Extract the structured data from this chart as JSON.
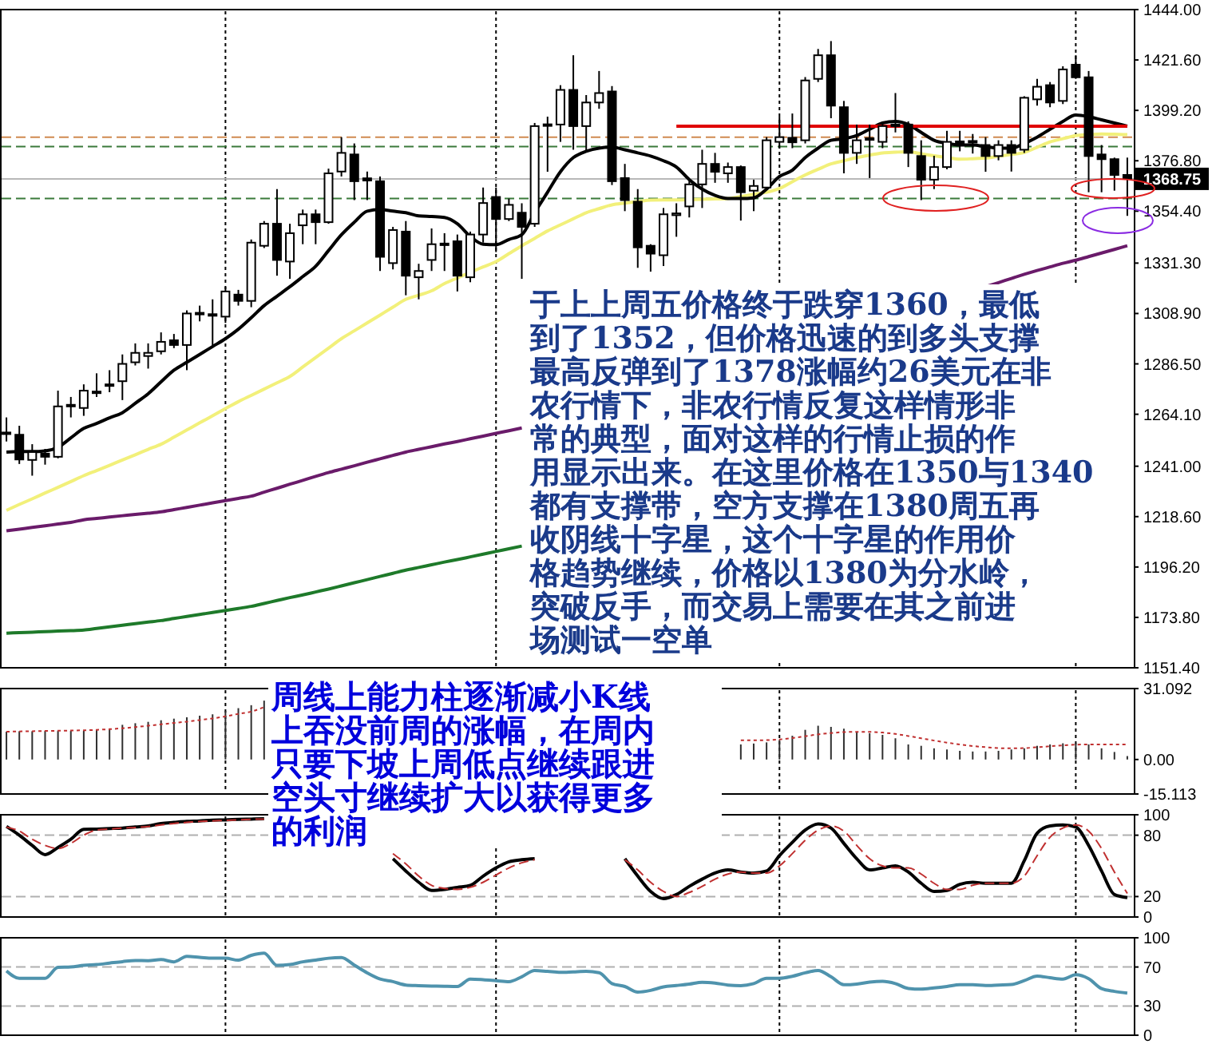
{
  "chart_data": [
    {
      "type": "candlestick",
      "categories": [
        null,
        null,
        null,
        null,
        null,
        null,
        null,
        null,
        null,
        null,
        null,
        null,
        null,
        null,
        null,
        null,
        null,
        null,
        null,
        null,
        null,
        null,
        null,
        null,
        null,
        null,
        null,
        null,
        null,
        null,
        null,
        null,
        null,
        null,
        null,
        null,
        null,
        null,
        null,
        null,
        null,
        null,
        null,
        null,
        null,
        null,
        null,
        null,
        null,
        null,
        null,
        null,
        null,
        null,
        null,
        null,
        null,
        null,
        null,
        null,
        null,
        null,
        null,
        null,
        null,
        null,
        null,
        null,
        null,
        null,
        null,
        null,
        null,
        null,
        null,
        null,
        null,
        null,
        null,
        null,
        null,
        null,
        null,
        null,
        null,
        null,
        null,
        null
      ],
      "ohlc": [
        [
          1255.7,
          1262.7,
          1252,
          1256
        ],
        [
          1255,
          1259,
          1242,
          1244
        ],
        [
          1243.8,
          1250.8,
          1236.8,
          1247.3
        ],
        [
          1246.6,
          1248.7,
          1241.7,
          1245.2
        ],
        [
          1245.2,
          1274.6,
          1244.5,
          1267.6
        ],
        [
          1268,
          1271.8,
          1262.7,
          1268.3
        ],
        [
          1266.9,
          1277.4,
          1263.4,
          1274.6
        ],
        [
          1273.8,
          1282.3,
          1271.8,
          1274.2
        ],
        [
          1276.8,
          1283.7,
          1273.9,
          1277.4
        ],
        [
          1278.8,
          1290.7,
          1270.4,
          1286.5
        ],
        [
          1287.2,
          1295.6,
          1285.8,
          1291.4
        ],
        [
          1290,
          1295.6,
          1284.4,
          1291.4
        ],
        [
          1292.1,
          1300.5,
          1290.7,
          1296.3
        ],
        [
          1297,
          1299.8,
          1293.5,
          1294.9
        ],
        [
          1294.9,
          1310.3,
          1283.7,
          1308.9
        ],
        [
          1308.6,
          1312.4,
          1305.4,
          1309.2
        ],
        [
          1308.2,
          1315.2,
          1294.2,
          1308.6
        ],
        [
          1307.5,
          1320.8,
          1304.7,
          1318.7
        ],
        [
          1317.3,
          1319.4,
          1312.4,
          1314.5
        ],
        [
          1314.5,
          1341.8,
          1311.7,
          1340.4
        ],
        [
          1339,
          1350,
          1338,
          1348.8
        ],
        [
          1348.8,
          1364.2,
          1325.7,
          1332.7
        ],
        [
          1332,
          1348.8,
          1324.3,
          1344.6
        ],
        [
          1348.1,
          1355.1,
          1339.7,
          1353
        ],
        [
          1353,
          1355.1,
          1339.7,
          1349.5
        ],
        [
          1349.5,
          1373.3,
          1348.8,
          1371.2
        ],
        [
          1372,
          1387.3,
          1369.8,
          1380.3
        ],
        [
          1379.6,
          1384.5,
          1359.3,
          1367.7
        ],
        [
          1369,
          1372,
          1359.3,
          1368
        ],
        [
          1367.7,
          1369.8,
          1327.8,
          1334.1
        ],
        [
          1331.3,
          1347.4,
          1328.5,
          1346
        ],
        [
          1345.3,
          1350,
          1317,
          1325.7
        ],
        [
          1325,
          1331,
          1315.2,
          1327.8
        ],
        [
          1332.7,
          1346.7,
          1327.8,
          1339.7
        ],
        [
          1339.7,
          1344.6,
          1327.8,
          1340
        ],
        [
          1341,
          1344,
          1318.7,
          1325.7
        ],
        [
          1325,
          1345.3,
          1322.8,
          1344
        ],
        [
          1344,
          1364.9,
          1340.4,
          1358
        ],
        [
          1360.7,
          1364.9,
          1336.2,
          1350.9
        ],
        [
          1350.9,
          1360,
          1350,
          1357.2
        ],
        [
          1353.7,
          1357.9,
          1324.3,
          1347.4
        ],
        [
          1348.8,
          1393.6,
          1347.4,
          1392.2
        ],
        [
          1392.5,
          1396.4,
          1371.9,
          1393
        ],
        [
          1392.9,
          1410.4,
          1385.2,
          1408.3
        ],
        [
          1408.3,
          1423.7,
          1381.7,
          1392.2
        ],
        [
          1392.2,
          1406,
          1381,
          1402.7
        ],
        [
          1402.7,
          1416.7,
          1399.9,
          1406.9
        ],
        [
          1407.6,
          1410,
          1366,
          1367.7
        ],
        [
          1369.1,
          1375.4,
          1354.4,
          1359.3
        ],
        [
          1358.6,
          1364.2,
          1329.2,
          1338.3
        ],
        [
          1339,
          1339.7,
          1327.5,
          1335.5
        ],
        [
          1334.8,
          1355.8,
          1330,
          1353
        ],
        [
          1352.6,
          1357.9,
          1343,
          1353.4
        ],
        [
          1356.5,
          1367.7,
          1351.6,
          1366.3
        ],
        [
          1366.3,
          1381.7,
          1355.8,
          1375.4
        ],
        [
          1375.4,
          1380.3,
          1367,
          1371.9
        ],
        [
          1371.2,
          1376,
          1367,
          1374
        ],
        [
          1374,
          1374.7,
          1350.2,
          1362.8
        ],
        [
          1363.5,
          1368.4,
          1354.4,
          1365.6
        ],
        [
          1364.9,
          1387.3,
          1364.2,
          1385.9
        ],
        [
          1385.2,
          1396.4,
          1382.4,
          1387.3
        ],
        [
          1387,
          1397.8,
          1382.4,
          1385
        ],
        [
          1385.9,
          1414,
          1384.5,
          1412.5
        ],
        [
          1413.2,
          1426.5,
          1411.8,
          1423.7
        ],
        [
          1423.7,
          1430,
          1395.7,
          1401.3
        ],
        [
          1400.6,
          1403.4,
          1371.2,
          1380.3
        ],
        [
          1380.3,
          1392.9,
          1375.4,
          1385.9
        ],
        [
          1386.4,
          1392.9,
          1369.1,
          1386.8
        ],
        [
          1385.2,
          1393.6,
          1382.4,
          1392.2
        ],
        [
          1392.5,
          1406.9,
          1389.4,
          1392.9
        ],
        [
          1392.9,
          1394.3,
          1374,
          1380.3
        ],
        [
          1378.9,
          1385.9,
          1359.3,
          1368.4
        ],
        [
          1368.4,
          1379,
          1364.2,
          1374
        ],
        [
          1374,
          1390.1,
          1373,
          1385.2
        ],
        [
          1385,
          1390.1,
          1381,
          1385.4
        ],
        [
          1385.2,
          1388.7,
          1380,
          1385.6
        ],
        [
          1383.8,
          1387.3,
          1371.9,
          1378.9
        ],
        [
          1378.9,
          1385.9,
          1377,
          1383.8
        ],
        [
          1383.8,
          1385.9,
          1372,
          1380.3
        ],
        [
          1381.7,
          1405.5,
          1380.3,
          1404.8
        ],
        [
          1404.1,
          1413.2,
          1401.3,
          1409.7
        ],
        [
          1410.4,
          1411.8,
          1400.6,
          1402.7
        ],
        [
          1403.4,
          1418.8,
          1402,
          1417.4
        ],
        [
          1419.5,
          1423.7,
          1413.2,
          1413.9
        ],
        [
          1413.9,
          1416.7,
          1362.8,
          1378.9
        ],
        [
          1379.6,
          1383.8,
          1362.8,
          1377.5
        ],
        [
          1377.5,
          1378.2,
          1363.5,
          1370.5
        ],
        [
          1370.5,
          1378.2,
          1352.3,
          1368.75
        ]
      ],
      "series": [
        {
          "type": "line",
          "color": "#1e7a2a",
          "values": [
            1166.8,
            1167,
            1167.2,
            1167.5,
            1167.7,
            1167.9,
            1168.2,
            1168.9,
            1169.6,
            1170.3,
            1171,
            1171.7,
            1172.4,
            1173.3,
            1174.2,
            1175.1,
            1176,
            1176.9,
            1177.8,
            1178.7,
            1180,
            1181.3,
            1182.6,
            1183.8,
            1185.1,
            1186.4,
            1187.8,
            1189.2,
            1190.6,
            1192,
            1193.4,
            1194.8,
            1196,
            1197.2,
            1198.4,
            1199.5,
            1200.7,
            1201.9,
            1203.1,
            1204.3,
            1205.5,
            null,
            null,
            null,
            null,
            null,
            null,
            null,
            null,
            null,
            null,
            null,
            null,
            null,
            null,
            null,
            null,
            null,
            null,
            null,
            null,
            null,
            null,
            null,
            null,
            null,
            null,
            null,
            null,
            null,
            null,
            null,
            null,
            null,
            null,
            null,
            null,
            null,
            null,
            null,
            null,
            null,
            null,
            null,
            null,
            null,
            null,
            null
          ]
        },
        {
          "type": "line",
          "color": "#6a1b6a",
          "values": [
            1212.3,
            1213,
            1213.8,
            1214.5,
            1215.3,
            1216,
            1217.2,
            1217.8,
            1218.4,
            1219,
            1219.6,
            1220.1,
            1220.7,
            1221.7,
            1222.7,
            1223.7,
            1224.7,
            1225.7,
            1226.7,
            1227.7,
            1229.5,
            1231.2,
            1233,
            1234.7,
            1236.5,
            1238.2,
            1239.7,
            1241.2,
            1242.8,
            1244.3,
            1245.8,
            1247.3,
            1248.5,
            1249.7,
            1250.9,
            1252,
            1253.2,
            1254.4,
            1255.6,
            1256.8,
            1258,
            null,
            null,
            null,
            null,
            null,
            null,
            null,
            null,
            null,
            null,
            null,
            null,
            null,
            null,
            null,
            null,
            null,
            null,
            null,
            null,
            null,
            null,
            null,
            null,
            null,
            null,
            null,
            null,
            null,
            null,
            null,
            null,
            null,
            null,
            null,
            1320.8,
            1322.6,
            1324.5,
            1326.3,
            1328,
            1329.6,
            1331.2,
            1332.6,
            1334.2,
            1335.8,
            1337.4,
            1339
          ]
        },
        {
          "type": "line",
          "color": "#f2f07a",
          "values": [
            1221.4,
            1224,
            1226.5,
            1229.1,
            1231.6,
            1234.2,
            1236.8,
            1239.1,
            1241.4,
            1243.8,
            1246.1,
            1248.5,
            1250.8,
            1253.9,
            1257.1,
            1260.3,
            1263.4,
            1266.6,
            1269.7,
            1272.5,
            1275.3,
            1278.1,
            1280.9,
            1285.1,
            1289.3,
            1293.5,
            1297.7,
            1301.2,
            1304.7,
            1308.2,
            1311.7,
            1315.2,
            1317,
            1319,
            1322.2,
            1324.7,
            1327.2,
            1329.6,
            1332,
            1335.5,
            1339,
            1342.3,
            1345.6,
            1348.3,
            1351,
            1353.7,
            1355.5,
            1357.2,
            1358,
            1358.7,
            1359.3,
            1359.4,
            1359.4,
            1359.5,
            1359.7,
            1359.8,
            1360,
            1360.9,
            1361.9,
            1362.8,
            1364.5,
            1367.5,
            1370.5,
            1373,
            1375.4,
            1376.8,
            1378.2,
            1379.3,
            1380.3,
            1380.6,
            1380.8,
            1379.9,
            1379,
            1378.2,
            1377.5,
            1377.7,
            1378,
            1378.8,
            1379.6,
            1380.5,
            1382.8,
            1385.2,
            1386.6,
            1388,
            1388.4,
            1388.7,
            1388.6,
            1388.4
          ]
        },
        {
          "type": "line",
          "color": "#000000",
          "values": [
            1247.3,
            1247.5,
            1247.5,
            1247.8,
            1249.4,
            1253.6,
            1257.8,
            1260,
            1262.5,
            1264.8,
            1269,
            1273.2,
            1278.5,
            1283.7,
            1287.2,
            1290.7,
            1294.2,
            1297.7,
            1301.9,
            1307,
            1312.4,
            1316.6,
            1320.8,
            1325.3,
            1329.9,
            1336.9,
            1343.9,
            1349.5,
            1354.4,
            1355.1,
            1354.4,
            1353.7,
            1352.3,
            1352,
            1351.6,
            1348.8,
            1343.2,
            1339.7,
            1339.5,
            1341.8,
            1343.9,
            1353.7,
            1362.8,
            1371.9,
            1378.2,
            1381,
            1382.4,
            1382.8,
            1381.7,
            1380.3,
            1378.9,
            1376.8,
            1374,
            1368.4,
            1364.2,
            1361.4,
            1360,
            1360,
            1360.3,
            1364.2,
            1369.8,
            1372.6,
            1378.2,
            1382.4,
            1385.9,
            1386.6,
            1388,
            1390.8,
            1393.6,
            1394.3,
            1392.9,
            1389.4,
            1385.9,
            1384.5,
            1383.8,
            1383.8,
            1383.1,
            1382.4,
            1382.4,
            1384.5,
            1387.3,
            1390.8,
            1394.3,
            1397.1,
            1396.4,
            1395,
            1393.6,
            1392.2
          ]
        },
        {
          "type": "line",
          "color": "#e00000",
          "values": [
            null,
            null,
            null,
            null,
            null,
            null,
            null,
            null,
            null,
            null,
            null,
            null,
            null,
            null,
            null,
            null,
            null,
            null,
            null,
            null,
            null,
            null,
            null,
            null,
            null,
            null,
            null,
            null,
            null,
            null,
            null,
            null,
            null,
            null,
            null,
            null,
            null,
            null,
            null,
            null,
            null,
            null,
            null,
            null,
            null,
            null,
            null,
            null,
            null,
            null,
            null,
            null,
            1392.2,
            1392.2,
            1392.2,
            1392.2,
            1392.2,
            1392.2,
            1392.2,
            1392.2,
            1392.2,
            1392.2,
            1392.2,
            1392.2,
            1392.2,
            1392.2,
            1392.2,
            1392.2,
            1392.2,
            1392.2,
            1392.2,
            1392.2,
            1392.2,
            1392.2,
            1392.2,
            1392.2,
            1392.2,
            1392.2,
            1392.2,
            1392.2,
            1392.2,
            1392.2,
            1392.2,
            1392.2,
            1392.2,
            1392.2,
            1392.2,
            1392.2
          ]
        }
      ],
      "ylim": [
        1151.4,
        1444
      ],
      "yticks": [
        {
          "value": 1151.4,
          "label": "1151.40"
        },
        {
          "value": 1173.8,
          "label": "1173.80"
        },
        {
          "value": 1196.2,
          "label": "1196.20"
        },
        {
          "value": 1218.6,
          "label": "1218.60"
        },
        {
          "value": 1241,
          "label": "1241.00"
        },
        {
          "value": 1264.1,
          "label": "1264.10"
        },
        {
          "value": 1286.5,
          "label": "1286.50"
        },
        {
          "value": 1308.9,
          "label": "1308.90"
        },
        {
          "value": 1331.3,
          "label": "1331.30"
        },
        {
          "value": 1354.4,
          "label": "1354.40"
        },
        {
          "value": 1376.8,
          "label": "1376.80"
        },
        {
          "value": 1399.2,
          "label": "1399.20"
        },
        {
          "value": 1421.6,
          "label": "1421.60"
        },
        {
          "value": 1444,
          "label": "1444.00"
        }
      ],
      "tick_labels": "y",
      "grid": "x",
      "ref_lines": [
        {
          "axis": "y",
          "value": 1387.3,
          "color": "#d08a50",
          "line_style": "dashed"
        },
        {
          "axis": "y",
          "value": 1383.1,
          "color": "#3a7a3a",
          "line_style": "dashed"
        },
        {
          "axis": "y",
          "value": 1368.75,
          "label": "1368.75",
          "color": "#b8b8b8",
          "line_style": "solid"
        },
        {
          "axis": "y",
          "value": 1360,
          "color": "#3a7a3a",
          "line_style": "dashed"
        }
      ],
      "annotations": [
        "于上上周五价格终于跌穿1360，最低",
        "到了1352，但价格迅速的到多头支撑",
        "最高反弹到了1378涨幅约26美元在非",
        "农行情下，非农行情反复这样情形非",
        "常的典型，面对这样的行情止损的作",
        "用显示出来。在这里价格在1350与1340",
        "都有支撑带，空方支撑在1380周五再",
        "收阴线十字星，这个十字星的作用价",
        "格趋势继续，价格以1380为分水岭，",
        "突破反手，而交易上需要在其之前进",
        "场测试一空单"
      ]
    },
    {
      "type": "bar",
      "categories": [
        null,
        null,
        null,
        null,
        null,
        null,
        null,
        null,
        null,
        null,
        null,
        null,
        null,
        null,
        null,
        null,
        null,
        null,
        null,
        null,
        null,
        null,
        null,
        null,
        null,
        null,
        null,
        null,
        null,
        null,
        null,
        null,
        null,
        null,
        null,
        null,
        null,
        null,
        null,
        null,
        null,
        null,
        null,
        null,
        null,
        null,
        null,
        null,
        null,
        null,
        null,
        null,
        null,
        null,
        null,
        null,
        null,
        null,
        null,
        null,
        null,
        null,
        null,
        null,
        null,
        null,
        null,
        null,
        null,
        null,
        null,
        null,
        null,
        null,
        null,
        null,
        null,
        null,
        null,
        null,
        null,
        null,
        null,
        null,
        null,
        null,
        null,
        null
      ],
      "series": [
        {
          "type": "bar",
          "color": "#303030",
          "values": [
            12.2,
            12.4,
            12.4,
            12.6,
            12.6,
            12.6,
            12.6,
            12.9,
            13.2,
            15.2,
            15.9,
            16.5,
            17.2,
            17.9,
            18.5,
            19.2,
            19.8,
            21.2,
            22.5,
            23.8,
            25.8,
            null,
            null,
            null,
            null,
            null,
            null,
            null,
            null,
            null,
            null,
            null,
            null,
            null,
            null,
            null,
            null,
            null,
            null,
            null,
            null,
            null,
            null,
            null,
            null,
            null,
            null,
            null,
            null,
            null,
            null,
            null,
            null,
            null,
            null,
            null,
            null,
            6.6,
            7,
            7.5,
            8.6,
            10.4,
            13,
            14.8,
            14.3,
            13.5,
            12.1,
            11.5,
            10.8,
            9.3,
            6.6,
            6,
            4.9,
            4.4,
            3.8,
            3.5,
            3.5,
            3.8,
            4.4,
            4.9,
            6,
            6.6,
            7.1,
            7.1,
            6.6,
            4.9,
            3.3,
            1.5
          ]
        },
        {
          "type": "line",
          "color": "#c03030",
          "line_style": "dotted",
          "values": [
            12.2,
            12.3,
            12.4,
            12.5,
            12.6,
            12.7,
            12.8,
            13,
            13.3,
            13.7,
            14.2,
            14.8,
            15.4,
            16,
            16.6,
            17.3,
            18,
            18.9,
            20,
            21,
            23,
            null,
            null,
            null,
            null,
            null,
            null,
            null,
            null,
            null,
            null,
            null,
            null,
            null,
            null,
            null,
            null,
            null,
            null,
            null,
            null,
            null,
            null,
            null,
            null,
            null,
            null,
            null,
            null,
            null,
            null,
            null,
            null,
            null,
            null,
            null,
            null,
            8.4,
            8.4,
            8.5,
            8.8,
            9.4,
            10.2,
            11,
            11.6,
            12,
            12.1,
            12.1,
            11.8,
            11.2,
            10.3,
            9.3,
            8.3,
            7.4,
            6.6,
            5.9,
            5.4,
            5,
            4.9,
            5,
            5.4,
            5.8,
            6.2,
            6.5,
            6.6,
            6.6,
            6.6,
            6.6
          ]
        }
      ],
      "ylim": [
        -15.113,
        31.092
      ],
      "yticks": [
        -15.113,
        {
          "value": 0,
          "label": "0.00"
        },
        31.092
      ],
      "grid": "x",
      "tick_labels": "y",
      "annotations": [
        "周线上能力柱逐渐减小K线",
        "上吞没前周的涨幅，在周内",
        "只要下坡上周低点继续跟进",
        "空头寸继续扩大以获得更多",
        "的利润"
      ]
    },
    {
      "type": "line",
      "categories": [
        null,
        null,
        null,
        null,
        null,
        null,
        null,
        null,
        null,
        null,
        null,
        null,
        null,
        null,
        null,
        null,
        null,
        null,
        null,
        null,
        null,
        null,
        null,
        null,
        null,
        null,
        null,
        null,
        null,
        null,
        null,
        null,
        null,
        null,
        null,
        null,
        null,
        null,
        null,
        null,
        null,
        null,
        null,
        null,
        null,
        null,
        null,
        null,
        null,
        null,
        null,
        null,
        null,
        null,
        null,
        null,
        null,
        null,
        null,
        null,
        null,
        null,
        null,
        null,
        null,
        null,
        null,
        null,
        null,
        null,
        null,
        null,
        null,
        null,
        null,
        null,
        null,
        null,
        null,
        null,
        null,
        null,
        null,
        null,
        null,
        null,
        null,
        null
      ],
      "series": [
        {
          "color": "#000000",
          "values": [
            88.6,
            80,
            70,
            61,
            68,
            76,
            85.7,
            86,
            86.5,
            87,
            88,
            89,
            91.4,
            92.5,
            93.5,
            94,
            94.8,
            95,
            95.5,
            95.8,
            96,
            null,
            null,
            null,
            null,
            null,
            null,
            null,
            null,
            null,
            57,
            45,
            34,
            26,
            27,
            29,
            31,
            40,
            48,
            54,
            56,
            57,
            null,
            null,
            null,
            null,
            null,
            null,
            57,
            40,
            25,
            18,
            22,
            30,
            37,
            43,
            46,
            44,
            43,
            45,
            60,
            73,
            85,
            91,
            87,
            72,
            57,
            46,
            48,
            50,
            44,
            33,
            25,
            26,
            32,
            34,
            33,
            33,
            33,
            55,
            82,
            89,
            90,
            88,
            70,
            45,
            22,
            19
          ]
        },
        {
          "color": "#c03030",
          "line_style": "dashed",
          "values": [
            88,
            84,
            76,
            70,
            67,
            72,
            80,
            85,
            86,
            87,
            87.5,
            88.5,
            90,
            91.5,
            92.5,
            93.5,
            94,
            94.5,
            95,
            95.5,
            95.8,
            null,
            null,
            null,
            null,
            null,
            null,
            null,
            null,
            null,
            62,
            52,
            40,
            31,
            28,
            27,
            29,
            34,
            41,
            48,
            53,
            56,
            null,
            null,
            null,
            null,
            null,
            null,
            56,
            46,
            34,
            25,
            20,
            24,
            30,
            37,
            42,
            44,
            43,
            43,
            50,
            62,
            75,
            85,
            89,
            84,
            70,
            57,
            50,
            48,
            48,
            42,
            33,
            27,
            27,
            31,
            33,
            33,
            33,
            40,
            60,
            78,
            87,
            90,
            84,
            67,
            44,
            23
          ]
        }
      ],
      "ylim": [
        0,
        100
      ],
      "yticks": [
        0,
        20,
        80,
        100
      ],
      "tick_labels": "y",
      "grid": true
    },
    {
      "type": "line",
      "categories": [
        null,
        null,
        null,
        null,
        null,
        null,
        null,
        null,
        null,
        null,
        null,
        null,
        null,
        null,
        null,
        null,
        null,
        null,
        null,
        null,
        null,
        null,
        null,
        null,
        null,
        null,
        null,
        null,
        null,
        null,
        null,
        null,
        null,
        null,
        null,
        null,
        null,
        null,
        null,
        null,
        null,
        null,
        null,
        null,
        null,
        null,
        null,
        null,
        null,
        null,
        null,
        null,
        null,
        null,
        null,
        null,
        null,
        null,
        null,
        null,
        null,
        null,
        null,
        null,
        null,
        null,
        null,
        null,
        null,
        null,
        null,
        null,
        null,
        null,
        null,
        null,
        null,
        null,
        null,
        null,
        null,
        null,
        null,
        null,
        null,
        null,
        null,
        null
      ],
      "series": [
        {
          "color": "#4f93ad",
          "values": [
            66,
            58.4,
            58.4,
            58.4,
            69.6,
            70,
            71.7,
            72.5,
            74,
            75.5,
            76.7,
            76.5,
            77.6,
            75.3,
            81,
            80,
            79,
            79,
            77,
            82,
            84.3,
            71.7,
            72.5,
            75.3,
            77,
            79,
            79.7,
            72,
            64,
            57.6,
            55,
            51.5,
            50.9,
            50.5,
            50.2,
            50,
            57.6,
            57,
            56,
            55,
            60,
            66.4,
            65.5,
            64.5,
            65,
            65.5,
            64.2,
            53,
            50,
            44.2,
            46,
            49.6,
            51,
            52.5,
            54.4,
            53.5,
            51.5,
            50.9,
            53,
            58.4,
            58.4,
            60.5,
            64,
            66.4,
            60,
            51.8,
            52.5,
            54.5,
            55.3,
            53,
            48,
            47.3,
            48.5,
            50,
            51.8,
            51.8,
            51,
            51.5,
            52,
            56,
            60.7,
            59,
            57.6,
            62,
            58,
            47.8,
            45,
            43.3
          ]
        }
      ],
      "ylim": [
        0,
        100
      ],
      "yticks": [
        0,
        30,
        70,
        100
      ],
      "tick_labels": "y",
      "grid": true
    }
  ]
}
